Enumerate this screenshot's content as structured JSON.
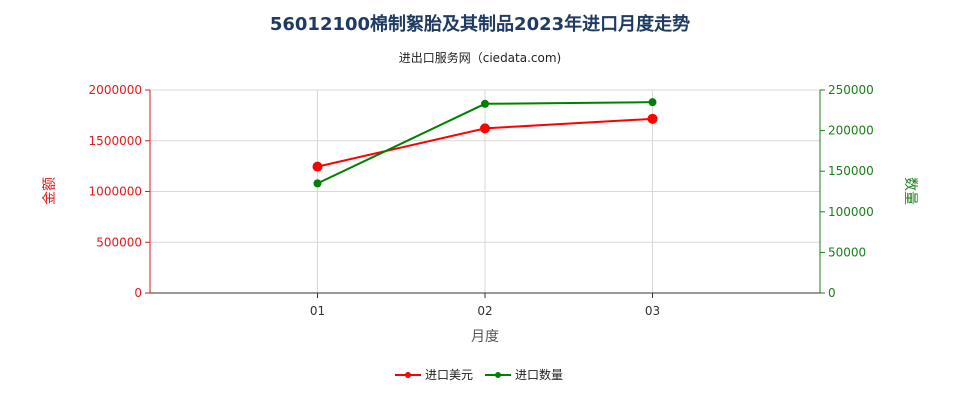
{
  "chart_data": {
    "type": "line",
    "title": "56012100棉制絮胎及其制品2023年进口月度走势",
    "subtitle": "进出口服务网（ciedata.com)",
    "xlabel": "月度",
    "ylabel_left": "金额",
    "ylabel_right": "数量",
    "categories": [
      "01",
      "02",
      "03"
    ],
    "left_axis": {
      "ylim": [
        0,
        2000000
      ],
      "ticks": [
        "0",
        "500000",
        "1000000",
        "1500000",
        "2000000"
      ],
      "color": "#e31a1c"
    },
    "right_axis": {
      "ylim": [
        0,
        250000
      ],
      "ticks": [
        "0",
        "50000",
        "100000",
        "150000",
        "200000",
        "250000"
      ],
      "color": "#1a7f1a"
    },
    "series": [
      {
        "name": "进口美元",
        "axis": "left",
        "color": "#ff0000",
        "values": [
          1245000,
          1622000,
          1716000
        ]
      },
      {
        "name": "进口数量",
        "axis": "right",
        "color": "#008000",
        "values": [
          135000,
          233000,
          235000
        ]
      }
    ],
    "grid": true,
    "legend_position": "bottom"
  }
}
